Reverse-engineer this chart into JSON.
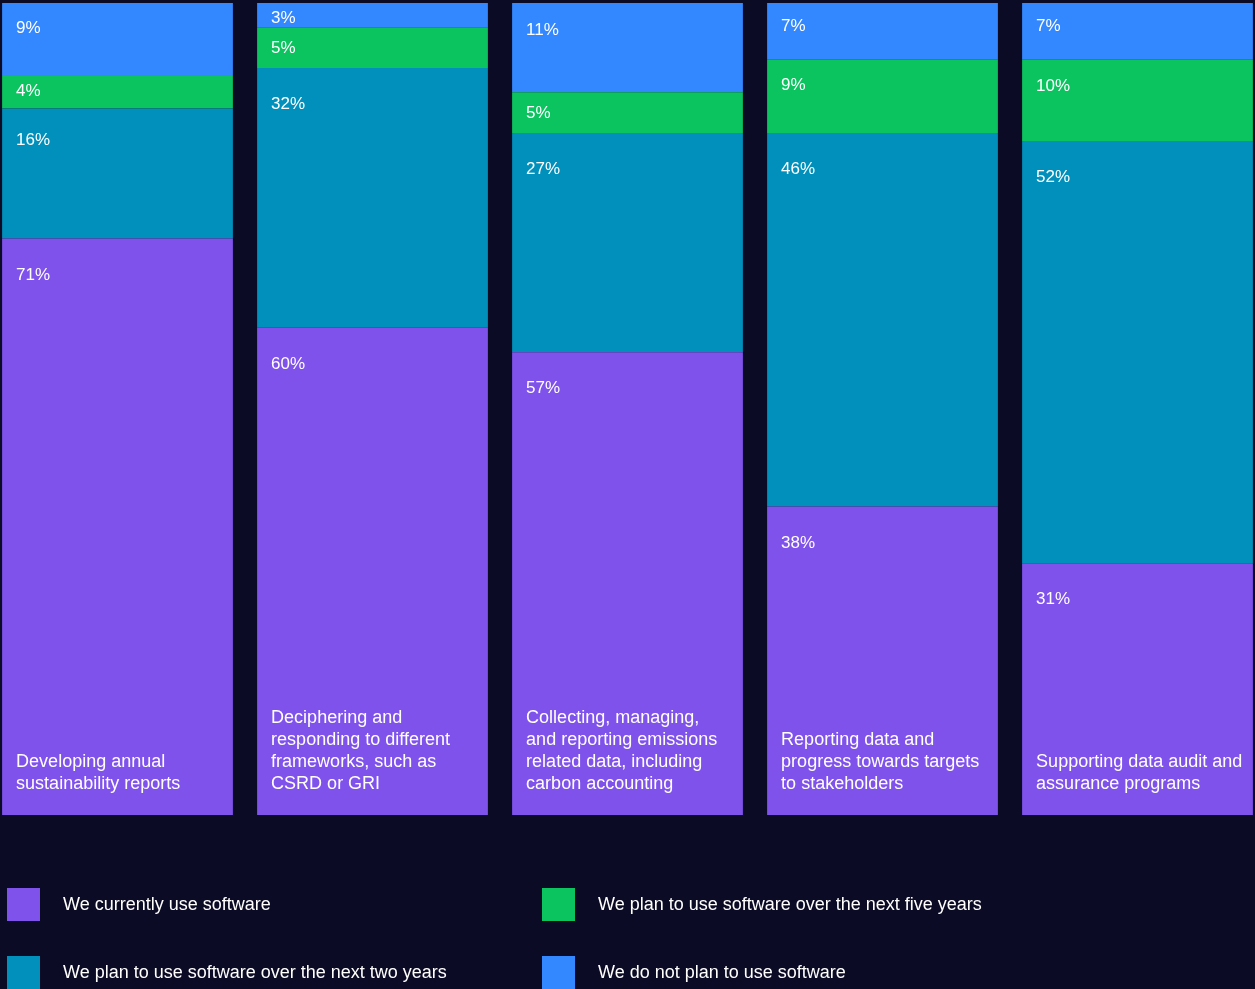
{
  "chart_data": {
    "type": "bar",
    "stacked": true,
    "tick_labels": false,
    "legend": "bottom",
    "categories": [
      "Developing annual sustainability reports",
      "Deciphering and responding to different frameworks, such as CSRD or GRI",
      "Collecting, managing, and reporting emissions related data, including carbon accounting",
      "Reporting data and progress towards targets to stakeholders",
      "Supporting data audit and assurance programs"
    ],
    "series": [
      {
        "name": "We currently use software",
        "color": "#7f52eb",
        "values": [
          71,
          60,
          57,
          38,
          31
        ],
        "value_labels": [
          "71%",
          "60%",
          "57%",
          "38%",
          "31%"
        ]
      },
      {
        "name": "We plan to use software over the next two years",
        "color": "#0090bb",
        "values": [
          16,
          32,
          27,
          46,
          52
        ],
        "value_labels": [
          "16%",
          "32%",
          "27%",
          "46%",
          "52%"
        ]
      },
      {
        "name": "We plan to use software over the next five years",
        "color": "#0bc45f",
        "values": [
          4,
          5,
          5,
          9,
          10
        ],
        "value_labels": [
          "4%",
          "5%",
          "5%",
          "9%",
          "10%"
        ]
      },
      {
        "name": "We do not plan to use software",
        "color": "#3388ff",
        "values": [
          9,
          3,
          11,
          7,
          7
        ],
        "value_labels": [
          "9%",
          "3%",
          "11%",
          "7%",
          "7%"
        ]
      }
    ]
  }
}
